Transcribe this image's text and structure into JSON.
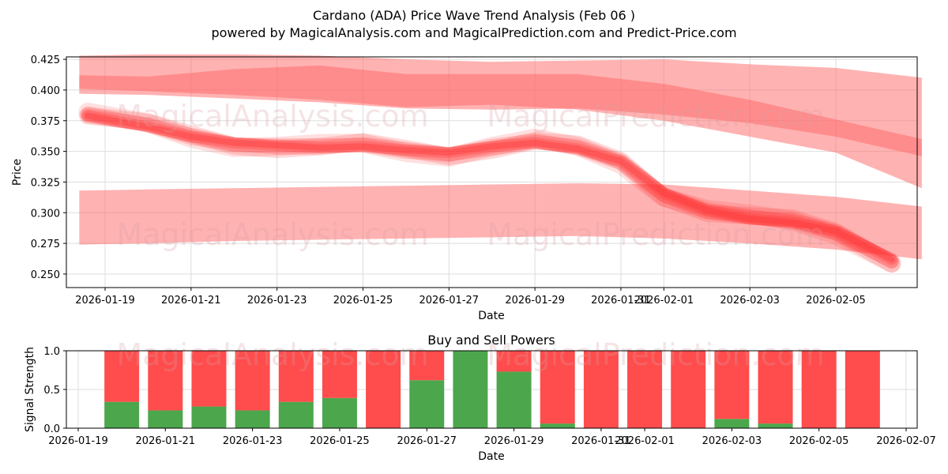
{
  "chart_data": [
    {
      "type": "area",
      "title": "Cardano (ADA) Price Wave Trend Analysis (Feb 06 )",
      "subtitle": "powered by MagicalAnalysis.com and MagicalPrediction.com and Predict-Price.com",
      "xlabel": "Date",
      "ylabel": "Price",
      "ylim": [
        0.239,
        0.427
      ],
      "yticks": [
        "0.250",
        "0.275",
        "0.300",
        "0.325",
        "0.350",
        "0.375",
        "0.400",
        "0.425"
      ],
      "xticks": [
        "2026-01-19",
        "2026-01-21",
        "2026-01-23",
        "2026-01-25",
        "2026-01-27",
        "2026-01-29",
        "2026-01-31",
        "2026-02-01",
        "2026-02-03",
        "2026-02-05"
      ],
      "grid": true,
      "watermarks": [
        "MagicalAnalysis.com",
        "MagicalPrediction.com"
      ],
      "bands": [
        {
          "name": "upper band",
          "x": [
            "2026-01-18.4",
            "2026-01-20",
            "2026-01-22",
            "2026-01-24",
            "2026-01-26",
            "2026-01-28",
            "2026-01-30",
            "2026-02-01",
            "2026-02-03",
            "2026-02-05",
            "2026-02-07"
          ],
          "upper": [
            0.428,
            0.429,
            0.429,
            0.428,
            0.425,
            0.423,
            0.424,
            0.425,
            0.421,
            0.418,
            0.41
          ],
          "lower": [
            0.397,
            0.396,
            0.393,
            0.39,
            0.385,
            0.384,
            0.385,
            0.38,
            0.373,
            0.362,
            0.346
          ]
        },
        {
          "name": "middle band",
          "x": [
            "2026-01-18.4",
            "2026-01-20",
            "2026-01-22",
            "2026-01-24",
            "2026-01-26",
            "2026-01-28",
            "2026-01-30",
            "2026-02-01",
            "2026-02-03",
            "2026-02-05",
            "2026-02-07"
          ],
          "upper": [
            0.412,
            0.411,
            0.417,
            0.42,
            0.413,
            0.413,
            0.413,
            0.405,
            0.392,
            0.376,
            0.36
          ],
          "lower": [
            0.401,
            0.399,
            0.396,
            0.392,
            0.386,
            0.388,
            0.384,
            0.375,
            0.362,
            0.349,
            0.32
          ]
        },
        {
          "name": "lower band",
          "x": [
            "2026-01-18.4",
            "2026-01-20",
            "2026-01-22",
            "2026-01-24",
            "2026-01-26",
            "2026-01-28",
            "2026-01-30",
            "2026-02-01",
            "2026-02-03",
            "2026-02-05",
            "2026-02-07"
          ],
          "upper": [
            0.318,
            0.319,
            0.32,
            0.321,
            0.322,
            0.323,
            0.324,
            0.323,
            0.318,
            0.313,
            0.305
          ],
          "lower": [
            0.274,
            0.275,
            0.277,
            0.278,
            0.279,
            0.28,
            0.281,
            0.279,
            0.275,
            0.27,
            0.262
          ]
        }
      ],
      "series": [
        {
          "name": "wave trend",
          "x": [
            "2026-01-18.6",
            "2026-01-20",
            "2026-01-21",
            "2026-01-22",
            "2026-01-23",
            "2026-01-24",
            "2026-01-25",
            "2026-01-26",
            "2026-01-27",
            "2026-01-28",
            "2026-01-29",
            "2026-01-30",
            "2026-01-31",
            "2026-02-01",
            "2026-02-02",
            "2026-02-03",
            "2026-02-04",
            "2026-02-05",
            "2026-02-06.3"
          ],
          "values": [
            0.379,
            0.37,
            0.362,
            0.357,
            0.355,
            0.353,
            0.354,
            0.351,
            0.349,
            0.354,
            0.357,
            0.352,
            0.342,
            0.316,
            0.302,
            0.295,
            0.292,
            0.285,
            0.262
          ]
        }
      ]
    },
    {
      "type": "bar",
      "title": "Buy and Sell Powers",
      "xlabel": "Date",
      "ylabel": "Signal Strength",
      "ylim": [
        0,
        1
      ],
      "yticks": [
        "0.0",
        "0.5",
        "1.0"
      ],
      "xticks": [
        "2026-01-19",
        "2026-01-21",
        "2026-01-23",
        "2026-01-25",
        "2026-01-27",
        "2026-01-29",
        "2026-01-31",
        "2026-02-01",
        "2026-02-03",
        "2026-02-05",
        "2026-02-07"
      ],
      "categories": [
        "2026-01-20",
        "2026-01-21",
        "2026-01-22",
        "2026-01-23",
        "2026-01-24",
        "2026-01-25",
        "2026-01-26",
        "2026-01-27",
        "2026-01-28",
        "2026-01-29",
        "2026-01-30",
        "2026-01-31",
        "2026-02-01",
        "2026-02-02",
        "2026-02-03",
        "2026-02-04",
        "2026-02-05",
        "2026-02-06"
      ],
      "series": [
        {
          "name": "Buy",
          "color": "#4ca64c",
          "values": [
            0.34,
            0.23,
            0.28,
            0.23,
            0.34,
            0.39,
            0.0,
            0.62,
            1.0,
            0.73,
            0.06,
            0.0,
            0.0,
            0.0,
            0.12,
            0.06,
            0.0,
            0.0
          ]
        },
        {
          "name": "Sell",
          "color": "#ff4c4c",
          "values": [
            0.66,
            0.77,
            0.72,
            0.77,
            0.66,
            0.61,
            1.0,
            0.38,
            0.0,
            0.27,
            0.94,
            1.0,
            1.0,
            1.0,
            0.88,
            0.94,
            1.0,
            1.0
          ]
        }
      ]
    }
  ],
  "colors": {
    "band": "#ff6666",
    "trend": "#ff2a2a",
    "buy": "#4ca64c",
    "sell": "#ff4c4c",
    "grid": "#dddddd"
  }
}
